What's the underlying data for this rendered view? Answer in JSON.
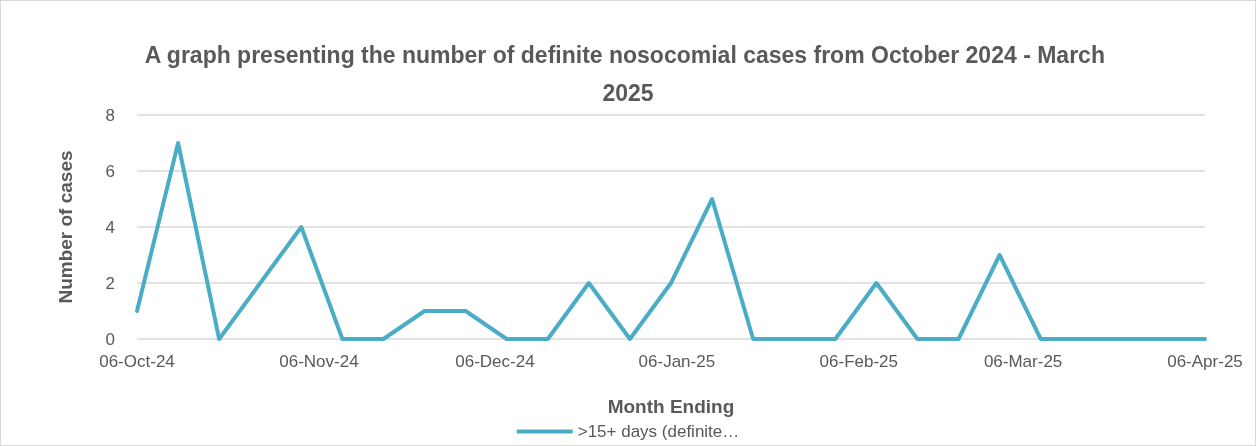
{
  "chart_data": {
    "type": "line",
    "title": "A graph presenting the number of definite nosocomial cases from October 2024 - March 2025",
    "xlabel": "Month Ending",
    "ylabel": "Number of cases",
    "x": [
      "2024-10-06",
      "2024-10-13",
      "2024-10-20",
      "2024-10-27",
      "2024-11-03",
      "2024-11-10",
      "2024-11-17",
      "2024-11-24",
      "2024-12-01",
      "2024-12-08",
      "2024-12-15",
      "2024-12-22",
      "2024-12-29",
      "2025-01-05",
      "2025-01-12",
      "2025-01-19",
      "2025-01-26",
      "2025-02-02",
      "2025-02-09",
      "2025-02-16",
      "2025-02-23",
      "2025-03-02",
      "2025-03-09",
      "2025-03-16",
      "2025-03-23",
      "2025-03-30",
      "2025-04-06"
    ],
    "series": [
      {
        "name": ">15+ days (definite…",
        "color": "#4bacc6",
        "values": [
          1,
          7,
          0,
          2,
          4,
          0,
          0,
          1,
          1,
          0,
          0,
          2,
          0,
          2,
          5,
          0,
          0,
          0,
          2,
          0,
          0,
          3,
          0,
          0,
          0,
          0,
          0
        ]
      }
    ],
    "xlim": [
      "2024-10-06",
      "2025-04-06"
    ],
    "xticks": [
      {
        "value": "2024-10-06",
        "label": "06-Oct-24"
      },
      {
        "value": "2024-11-06",
        "label": "06-Nov-24"
      },
      {
        "value": "2024-12-06",
        "label": "06-Dec-24"
      },
      {
        "value": "2025-01-06",
        "label": "06-Jan-25"
      },
      {
        "value": "2025-02-06",
        "label": "06-Feb-25"
      },
      {
        "value": "2025-03-06",
        "label": "06-Mar-25"
      },
      {
        "value": "2025-04-06",
        "label": "06-Apr-25"
      }
    ],
    "ylim": [
      0,
      8
    ],
    "yticks": [
      0,
      2,
      4,
      6,
      8
    ],
    "grid": "y",
    "legend": "bottom",
    "marker": "none",
    "line_style": "solid"
  }
}
